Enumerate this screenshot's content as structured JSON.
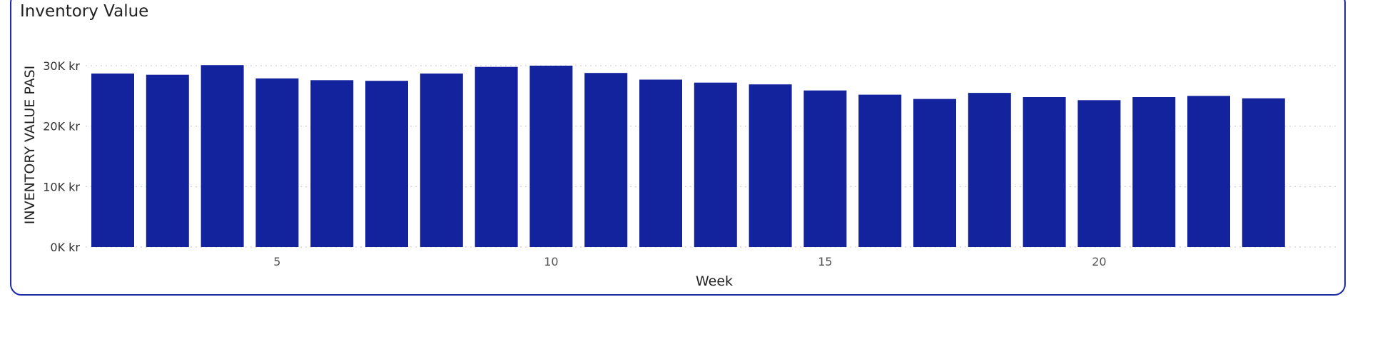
{
  "colors": {
    "bar": "#13239E",
    "border": "#1E2BA8",
    "grid": "#c8c8c8"
  },
  "chart_data": {
    "type": "bar",
    "title": "Inventory Value",
    "xlabel": "Week",
    "ylabel": "INVENTORY VALUE PASI",
    "categories": [
      2,
      3,
      4,
      5,
      6,
      7,
      8,
      9,
      10,
      11,
      12,
      13,
      14,
      15,
      16,
      17,
      18,
      19,
      20,
      21,
      22,
      23
    ],
    "values": [
      28700,
      28500,
      30100,
      27900,
      27600,
      27500,
      28700,
      29800,
      30000,
      28800,
      27700,
      27200,
      26900,
      25900,
      25200,
      24500,
      25500,
      24800,
      24300,
      24800,
      25000,
      24600
    ],
    "x_ticks": [
      "5",
      "10",
      "15",
      "20"
    ],
    "x_tick_values": [
      5,
      10,
      15,
      20
    ],
    "y_ticks": [
      "0K kr",
      "10K kr",
      "20K kr",
      "30K kr"
    ],
    "y_tick_values": [
      0,
      10000,
      20000,
      30000
    ],
    "ylim": [
      0,
      30000
    ],
    "grid": true,
    "grid_style": "dotted",
    "legend": "none"
  }
}
